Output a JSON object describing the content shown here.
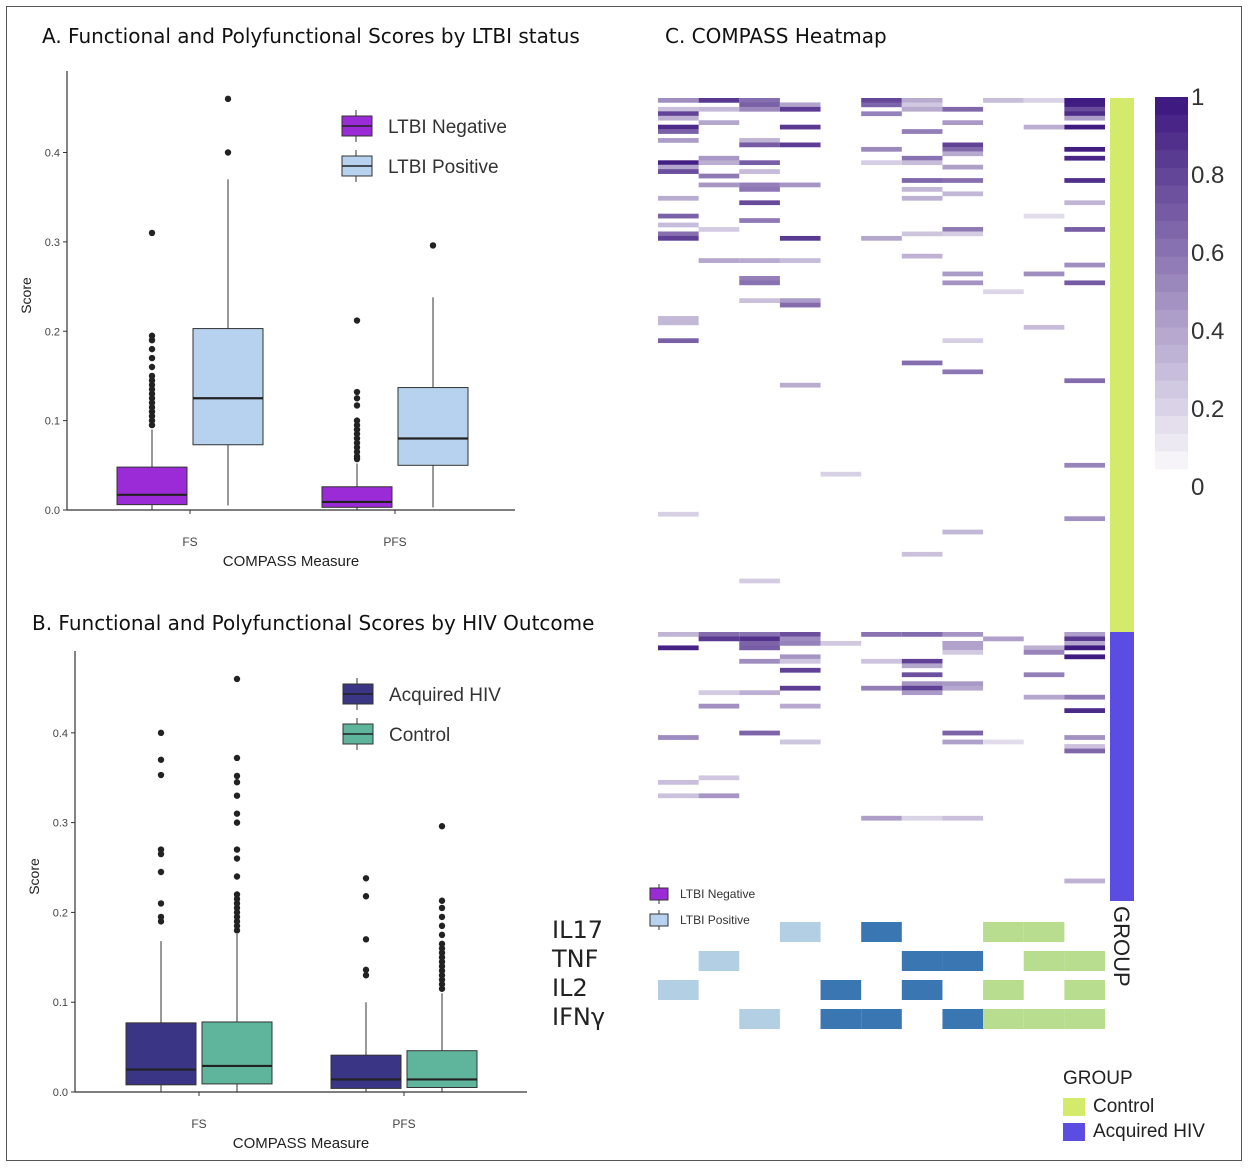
{
  "panels": {
    "a_title": "A.  Functional and Polyfunctional Scores by LTBI status",
    "b_title": "B. Functional and Polyfunctional Scores by HIV Outcome",
    "c_title": "C. COMPASS Heatmap"
  },
  "chart_data": [
    {
      "type": "box",
      "panel": "A",
      "title": "A.  Functional and Polyfunctional Scores by LTBI status",
      "xlabel": "COMPASS Measure",
      "ylabel": "Score",
      "ylim": [
        0,
        0.48
      ],
      "yticks": [
        0.0,
        0.1,
        0.2,
        0.3,
        0.4
      ],
      "ytick_labels": [
        "0.0",
        "0.1",
        "0.2",
        "0.3",
        "0.4"
      ],
      "categories": [
        "FS",
        "PFS"
      ],
      "legend": {
        "placement": "top-right"
      },
      "series": [
        {
          "name": "LTBI Negative",
          "color": "#9b2bd6",
          "boxes": [
            {
              "min": 0.0,
              "q1": 0.006,
              "median": 0.017,
              "q3": 0.048,
              "max": 0.09,
              "outliers": [
                0.31,
                0.195,
                0.19,
                0.18,
                0.17,
                0.16,
                0.15,
                0.145,
                0.14,
                0.135,
                0.13,
                0.125,
                0.12,
                0.115,
                0.11,
                0.105,
                0.1,
                0.095
              ]
            },
            {
              "min": 0.0,
              "q1": 0.003,
              "median": 0.009,
              "q3": 0.026,
              "max": 0.052,
              "outliers": [
                0.212,
                0.132,
                0.125,
                0.117,
                0.1,
                0.095,
                0.09,
                0.085,
                0.08,
                0.075,
                0.07,
                0.065,
                0.06,
                0.057
              ]
            }
          ]
        },
        {
          "name": "LTBI Positive",
          "color": "#b7d2ee",
          "boxes": [
            {
              "min": 0.005,
              "q1": 0.073,
              "median": 0.125,
              "q3": 0.203,
              "max": 0.37,
              "outliers": [
                0.46,
                0.4
              ]
            },
            {
              "min": 0.003,
              "q1": 0.05,
              "median": 0.08,
              "q3": 0.137,
              "max": 0.238,
              "outliers": [
                0.296
              ]
            }
          ]
        }
      ]
    },
    {
      "type": "box",
      "panel": "B",
      "title": "B. Functional and Polyfunctional Scores by HIV Outcome",
      "xlabel": "COMPASS Measure",
      "ylabel": "Score",
      "ylim": [
        0,
        0.48
      ],
      "yticks": [
        0.0,
        0.1,
        0.2,
        0.3,
        0.4
      ],
      "ytick_labels": [
        "0.0",
        "0.1",
        "0.2",
        "0.3",
        "0.4"
      ],
      "categories": [
        "FS",
        "PFS"
      ],
      "legend": {
        "placement": "top-right"
      },
      "series": [
        {
          "name": "Acquired HIV",
          "color": "#3b3586",
          "boxes": [
            {
              "min": 0.0,
              "q1": 0.008,
              "median": 0.025,
              "q3": 0.077,
              "max": 0.168,
              "outliers": [
                0.4,
                0.37,
                0.353,
                0.27,
                0.265,
                0.245,
                0.21,
                0.195,
                0.19
              ]
            },
            {
              "min": 0.0,
              "q1": 0.004,
              "median": 0.014,
              "q3": 0.041,
              "max": 0.1,
              "outliers": [
                0.238,
                0.218,
                0.17,
                0.136,
                0.13
              ]
            }
          ]
        },
        {
          "name": "Control",
          "color": "#5fb49c",
          "boxes": [
            {
              "min": 0.0,
              "q1": 0.009,
              "median": 0.029,
              "q3": 0.078,
              "max": 0.176,
              "outliers": [
                0.46,
                0.372,
                0.352,
                0.345,
                0.33,
                0.31,
                0.3,
                0.27,
                0.26,
                0.24,
                0.22,
                0.215,
                0.21,
                0.205,
                0.2,
                0.195,
                0.19,
                0.185,
                0.18
              ]
            },
            {
              "min": 0.0,
              "q1": 0.005,
              "median": 0.014,
              "q3": 0.046,
              "max": 0.11,
              "outliers": [
                0.296,
                0.213,
                0.205,
                0.195,
                0.185,
                0.175,
                0.165,
                0.16,
                0.155,
                0.15,
                0.145,
                0.14,
                0.135,
                0.13,
                0.125,
                0.12,
                0.115
              ]
            }
          ]
        }
      ]
    },
    {
      "type": "heatmap",
      "panel": "C",
      "title": "C. COMPASS Heatmap",
      "n_columns": 11,
      "colorbar": {
        "ticks": [
          1,
          0.8,
          0.6,
          0.4,
          0.2,
          0
        ],
        "tick_labels": [
          "1",
          "0.8",
          "0.6",
          "0.4",
          "0.2",
          "0"
        ],
        "low": "#ffffff",
        "high": "#3f1a80"
      },
      "column_intensity": [
        0.8,
        0.55,
        0.7,
        0.75,
        0.15,
        0.45,
        0.65,
        0.7,
        0.1,
        0.25,
        0.9
      ],
      "groups": [
        {
          "name": "Control",
          "color": "#d4ea6b",
          "fraction": 0.665
        },
        {
          "name": "Acquired HIV",
          "color": "#5b4de2",
          "fraction": 0.335
        }
      ],
      "group_label": "GROUP",
      "group_legend": {
        "title": "GROUP",
        "items": [
          "Control",
          "Acquired HIV"
        ]
      },
      "inner_legend": [
        "LTBI Negative",
        "LTBI Positive"
      ],
      "cytokine_rows": [
        "IL17",
        "TNF",
        "IL2",
        "IFNγ"
      ],
      "cytokine_matrix": [
        [
          0,
          0,
          0,
          1,
          0,
          2,
          0,
          0,
          3,
          3,
          0
        ],
        [
          0,
          1,
          0,
          0,
          0,
          0,
          2,
          2,
          0,
          3,
          3
        ],
        [
          1,
          0,
          0,
          0,
          2,
          0,
          2,
          0,
          3,
          0,
          3
        ],
        [
          0,
          0,
          1,
          0,
          2,
          2,
          0,
          2,
          3,
          3,
          3
        ]
      ],
      "cytokine_colors": [
        "#ffffff",
        "#b2cfe4",
        "#3a77b2",
        "#b8dd8e"
      ]
    }
  ]
}
